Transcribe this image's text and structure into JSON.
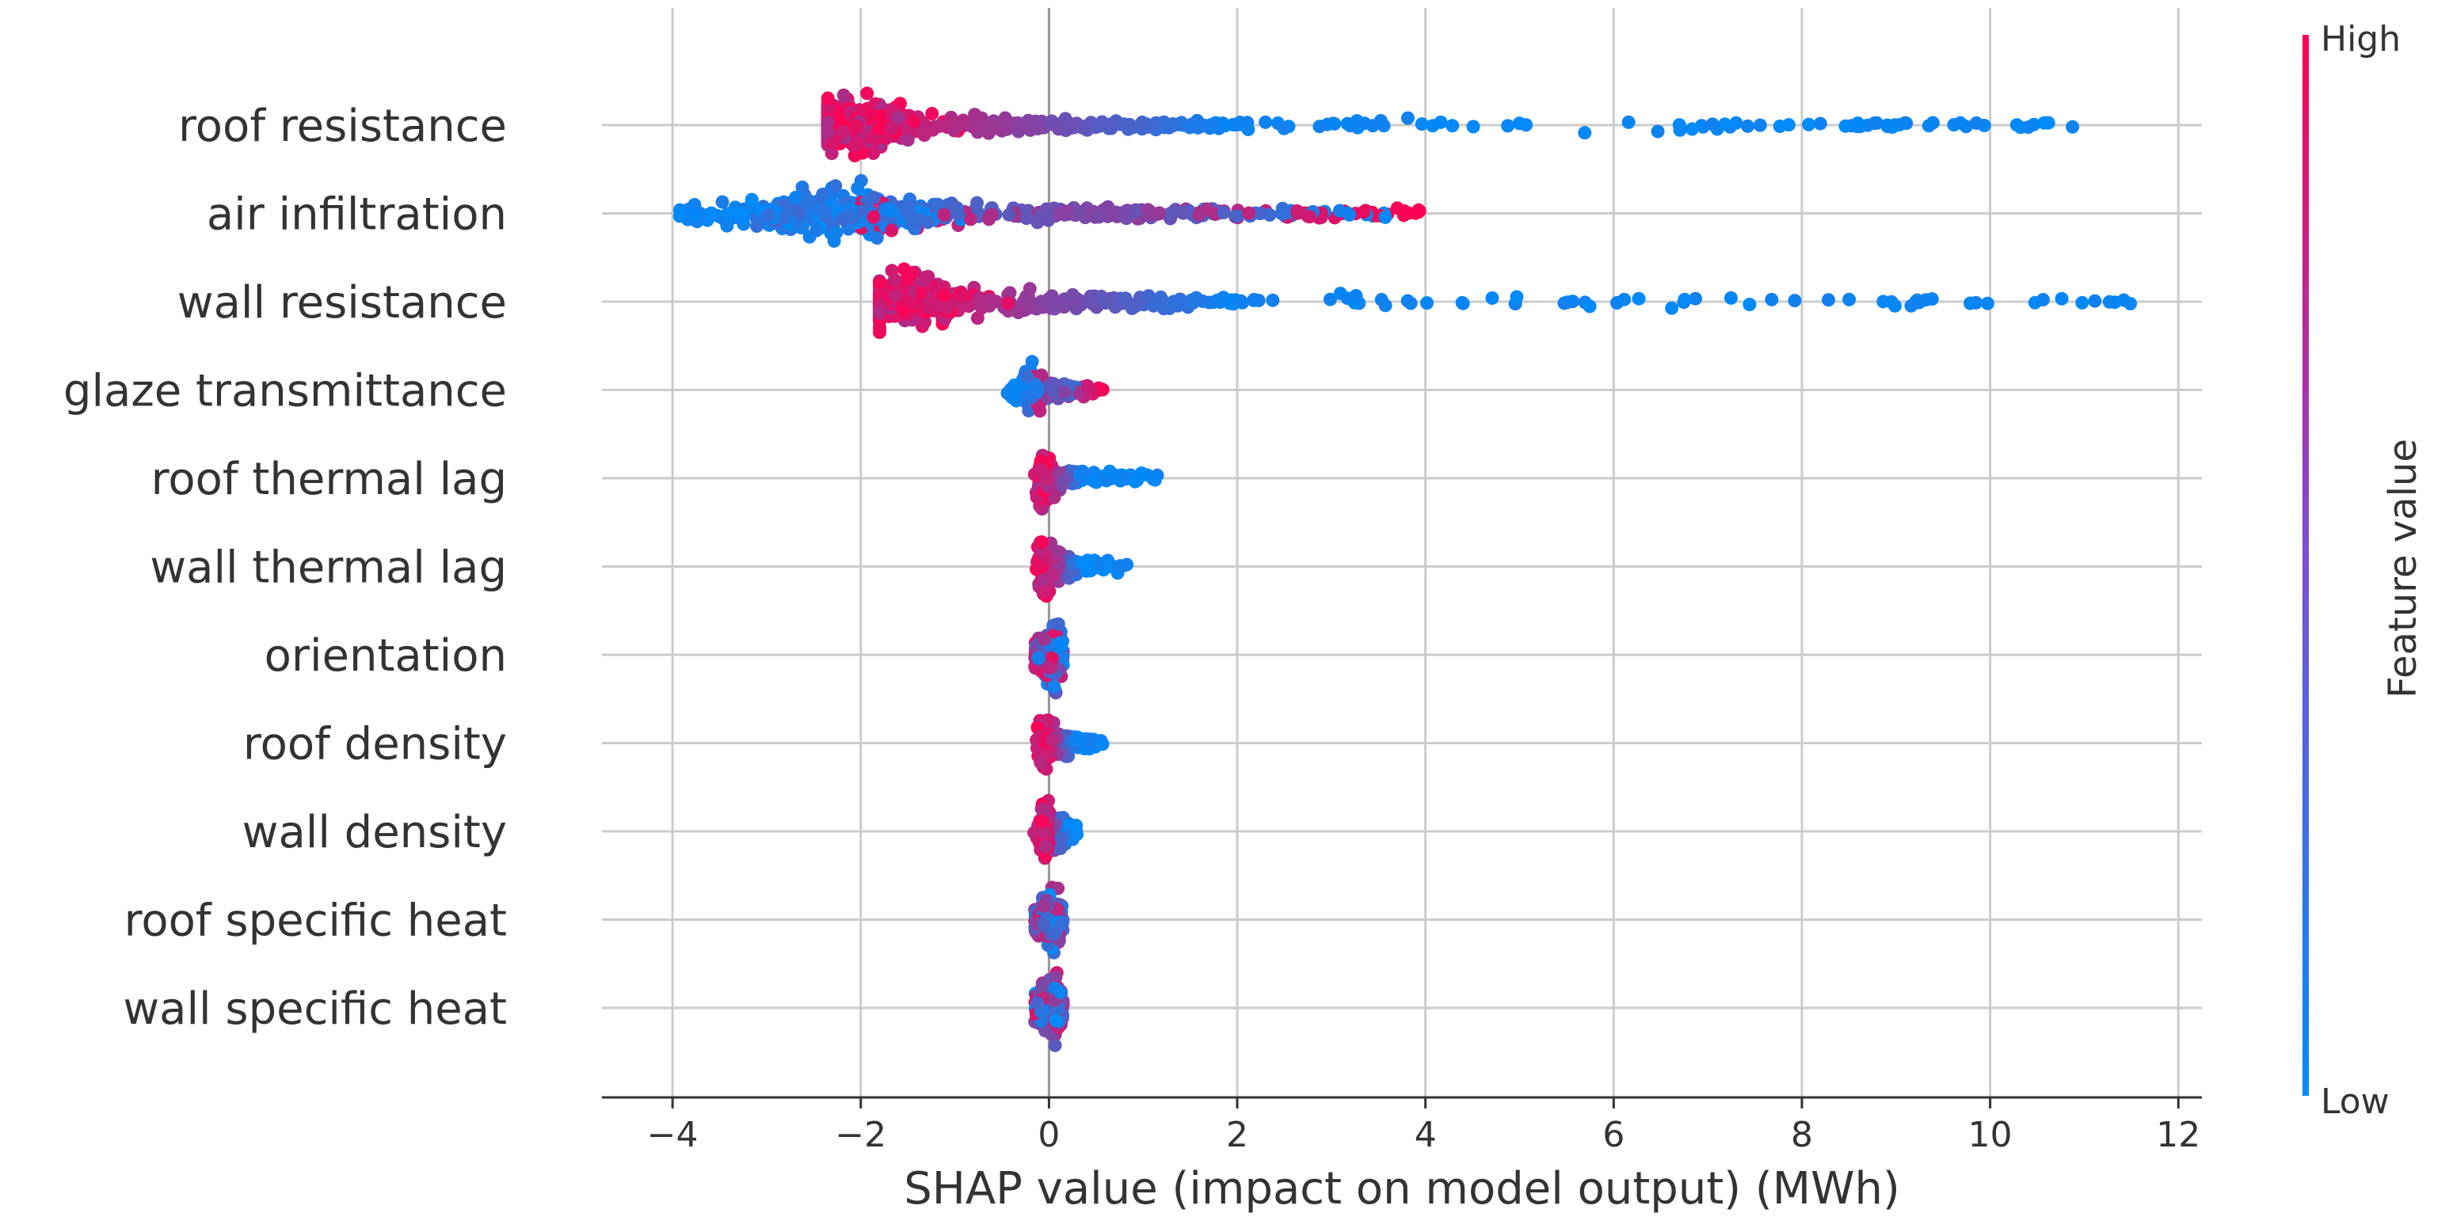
{
  "chart_data": {
    "type": "scatter",
    "subtype": "shap-beeswarm",
    "xlabel": "SHAP value (impact on model output) (MWh)",
    "xticks": [
      -4,
      -2,
      0,
      2,
      4,
      6,
      8,
      10,
      12
    ],
    "xtick_labels": [
      "−4",
      "−2",
      "0",
      "2",
      "4",
      "6",
      "8",
      "10",
      "12"
    ],
    "xlim": [
      -4.75,
      12.25
    ],
    "grid": "vertical-and-row",
    "colorbar": {
      "title": "Feature value",
      "high_label": "High",
      "low_label": "Low",
      "high_color": "#ff0052",
      "low_color": "#008bfb"
    },
    "features": [
      {
        "name": "roof resistance",
        "direction": "high_negative",
        "min": -2.35,
        "max": 10.9,
        "core_high": -2.1,
        "core_low": 2.0,
        "head_spread": 0.45
      },
      {
        "name": "air infiltration",
        "direction": "high_positive",
        "min": -3.95,
        "max": 3.95,
        "core_low": -2.2,
        "core_high": 3.6,
        "head_spread": 0.4
      },
      {
        "name": "wall resistance",
        "direction": "high_negative",
        "min": -1.8,
        "max": 11.5,
        "core_high": -1.6,
        "core_low": 2.0,
        "head_spread": 0.45
      },
      {
        "name": "glaze transmittance",
        "direction": "high_positive",
        "min": -0.45,
        "max": 0.6,
        "core_low": -0.2,
        "core_high": 0.35,
        "head_spread": 0.45
      },
      {
        "name": "roof thermal lag",
        "direction": "high_negative",
        "min": -0.2,
        "max": 1.2,
        "core_high": -0.05,
        "core_low": 0.35,
        "head_spread": 0.6
      },
      {
        "name": "wall thermal lag",
        "direction": "high_negative",
        "min": -0.25,
        "max": 0.85,
        "core_high": -0.05,
        "core_low": 0.35,
        "head_spread": 0.6
      },
      {
        "name": "orientation",
        "direction": "mixed",
        "min": -0.15,
        "max": 0.15,
        "core_high": 0.05,
        "core_low": -0.05,
        "head_spread": 0.8
      },
      {
        "name": "roof density",
        "direction": "high_negative",
        "min": -0.2,
        "max": 0.6,
        "core_high": -0.05,
        "core_low": 0.3,
        "head_spread": 0.6
      },
      {
        "name": "wall density",
        "direction": "high_negative",
        "min": -0.2,
        "max": 0.3,
        "core_high": -0.05,
        "core_low": 0.2,
        "head_spread": 0.6
      },
      {
        "name": "roof specific heat",
        "direction": "mixed",
        "min": -0.15,
        "max": 0.15,
        "core_high": 0.05,
        "core_low": -0.05,
        "head_spread": 0.8
      },
      {
        "name": "wall specific heat",
        "direction": "mixed",
        "min": -0.15,
        "max": 0.15,
        "core_high": 0.05,
        "core_low": -0.05,
        "head_spread": 0.8
      }
    ]
  }
}
